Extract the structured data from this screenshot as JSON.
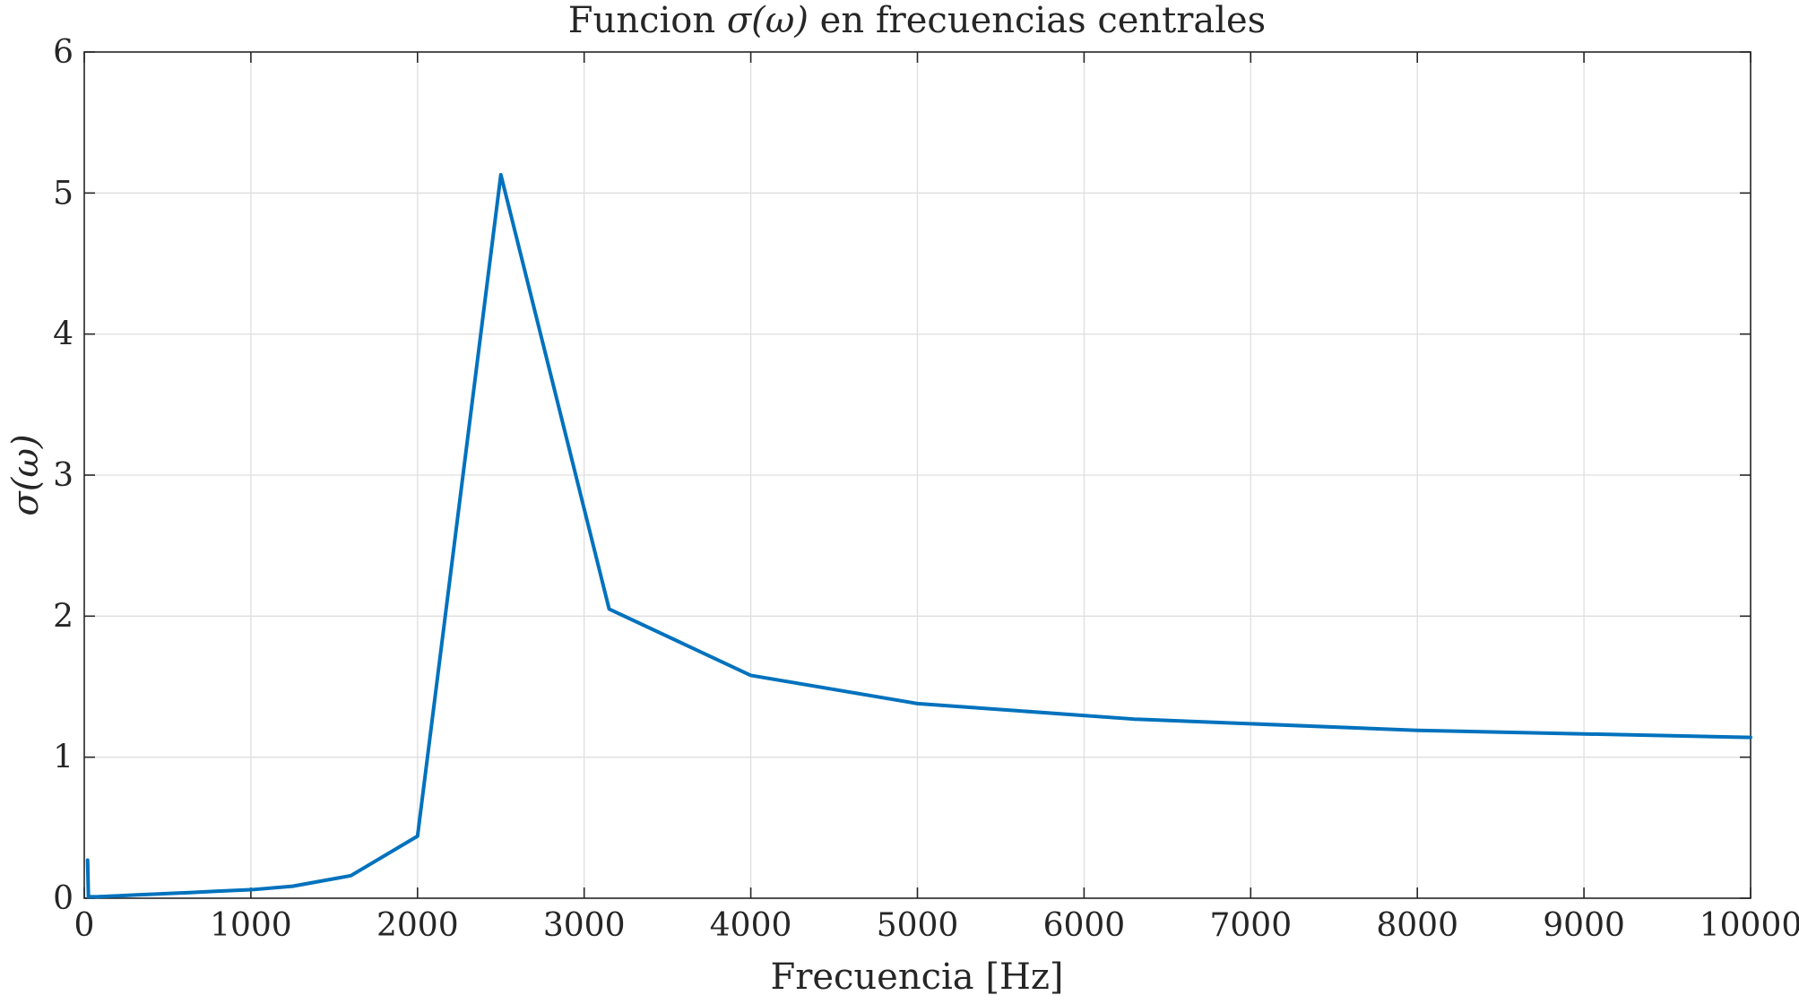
{
  "chart_data": {
    "type": "line",
    "title": "Funcion σ(ω) en frecuencias centrales",
    "title_parts": {
      "pre": "Funcion ",
      "symbol": "σ(ω)",
      "post": " en frecuencias centrales"
    },
    "xlabel": "Frecuencia [Hz]",
    "ylabel": "σ(ω)",
    "xlim": [
      0,
      10000
    ],
    "ylim": [
      0,
      6
    ],
    "xticks": [
      0,
      1000,
      2000,
      3000,
      4000,
      5000,
      6000,
      7000,
      8000,
      9000,
      10000
    ],
    "xtick_labels": [
      "0",
      "1000",
      "2000",
      "3000",
      "4000",
      "5000",
      "6000",
      "7000",
      "8000",
      "9000",
      "10000"
    ],
    "yticks": [
      0,
      1,
      2,
      3,
      4,
      5,
      6
    ],
    "ytick_labels": [
      "0",
      "1",
      "2",
      "3",
      "4",
      "5",
      "6"
    ],
    "grid": true,
    "series": [
      {
        "color": "#0072bd",
        "x": [
          20,
          25,
          31.5,
          40,
          50,
          63,
          80,
          100,
          125,
          160,
          200,
          250,
          315,
          400,
          500,
          630,
          800,
          1000,
          1250,
          1600,
          2000,
          2500,
          3150,
          4000,
          5000,
          6300,
          8000,
          10000
        ],
        "y": [
          0.27,
          0.01,
          0.01,
          0.01,
          0.01,
          0.01,
          0.01,
          0.012,
          0.013,
          0.015,
          0.017,
          0.02,
          0.024,
          0.028,
          0.033,
          0.04,
          0.05,
          0.06,
          0.085,
          0.16,
          0.44,
          5.13,
          2.05,
          1.58,
          1.38,
          1.27,
          1.19,
          1.14
        ]
      }
    ]
  }
}
